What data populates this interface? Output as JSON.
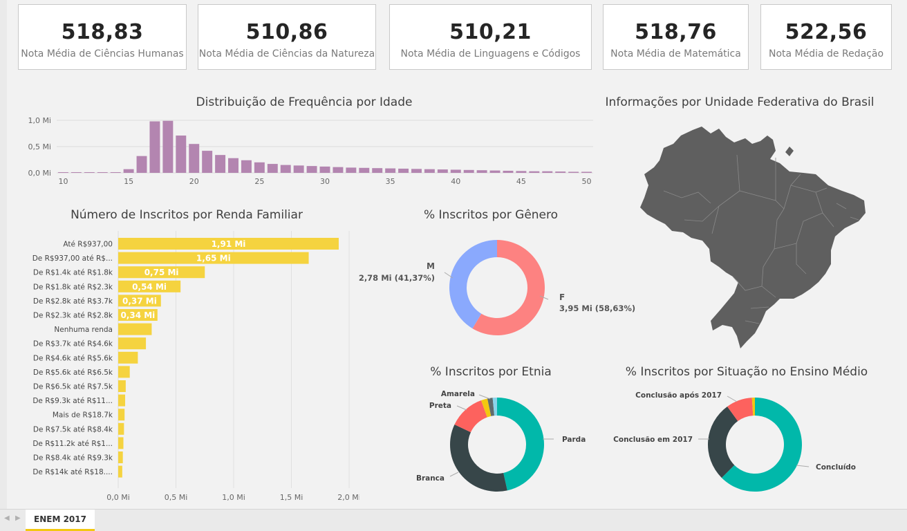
{
  "kpis": [
    {
      "value": "518,83",
      "label": "Nota Média de Ciências Humanas"
    },
    {
      "value": "510,86",
      "label": "Nota Média de Ciências da Natureza"
    },
    {
      "value": "510,21",
      "label": "Nota Média de Linguagens e Códigos"
    },
    {
      "value": "518,76",
      "label": "Nota Média de Matemática"
    },
    {
      "value": "522,56",
      "label": "Nota Média de Redação"
    }
  ],
  "titles": {
    "age": "Distribuição de Frequência por Idade",
    "map": "Informações por Unidade Federativa do Brasil",
    "income": "Número de Inscritos por Renda Familiar",
    "gender": "% Inscritos por Gênero",
    "ethnicity": "% Inscritos por Etnia",
    "school": "% Inscritos por Situação no Ensino Médio"
  },
  "colors": {
    "age_bar": "#b385b0",
    "income_bar": "#f5d33f",
    "map_fill": "#5f5f5f",
    "tab_accent": "#f2c811"
  },
  "chart_data": [
    {
      "type": "bar",
      "title": "Distribuição de Frequência por Idade",
      "x": [
        10,
        11,
        12,
        13,
        14,
        15,
        16,
        17,
        18,
        19,
        20,
        21,
        22,
        23,
        24,
        25,
        26,
        27,
        28,
        29,
        30,
        31,
        32,
        33,
        34,
        35,
        36,
        37,
        38,
        39,
        40,
        41,
        42,
        43,
        44,
        45,
        46,
        47,
        48,
        49,
        50
      ],
      "values": [
        0.003,
        0.003,
        0.003,
        0.004,
        0.006,
        0.07,
        0.32,
        0.98,
        0.99,
        0.71,
        0.55,
        0.42,
        0.34,
        0.28,
        0.24,
        0.2,
        0.17,
        0.15,
        0.14,
        0.13,
        0.12,
        0.11,
        0.1,
        0.095,
        0.09,
        0.085,
        0.08,
        0.075,
        0.07,
        0.065,
        0.06,
        0.055,
        0.05,
        0.045,
        0.04,
        0.035,
        0.03,
        0.03,
        0.025,
        0.02,
        0.02
      ],
      "y_ticks": [
        "0,0 Mi",
        "0,5 Mi",
        "1,0 Mi"
      ],
      "x_ticks": [
        "10",
        "15",
        "20",
        "25",
        "30",
        "35",
        "40",
        "45",
        "50"
      ],
      "ylim": [
        0,
        1.0
      ],
      "unit": "Mi"
    },
    {
      "type": "bar",
      "orientation": "horizontal",
      "title": "Número de Inscritos por Renda Familiar",
      "categories": [
        "Até R$937,00",
        "De R$937,00 até R$...",
        "De R$1.4k até R$1.8k",
        "De R$1.8k até R$2.3k",
        "De R$2.8k até R$3.7k",
        "De R$2.3k até R$2.8k",
        "Nenhuma renda",
        "De R$3.7k até R$4.6k",
        "De R$4.6k até R$5.6k",
        "De R$5.6k até R$6.5k",
        "De R$6.5k até R$7.5k",
        "De R$9.3k até R$11...",
        "Mais de R$18.7k",
        "De R$7.5k até R$8.4k",
        "De R$11.2k até R$1...",
        "De R$8.4k até R$9.3k",
        "De R$14k até R$18...."
      ],
      "values": [
        1.91,
        1.65,
        0.75,
        0.54,
        0.37,
        0.34,
        0.29,
        0.24,
        0.17,
        0.1,
        0.065,
        0.06,
        0.055,
        0.05,
        0.045,
        0.04,
        0.035
      ],
      "data_labels": [
        "1,91 Mi",
        "1,65 Mi",
        "0,75 Mi",
        "0,54 Mi",
        "0,37 Mi",
        "0,34 Mi",
        "",
        "",
        "",
        "",
        "",
        "",
        "",
        "",
        "",
        "",
        ""
      ],
      "x_ticks": [
        "0,0 Mi",
        "0,5 Mi",
        "1,0 Mi",
        "1,5 Mi",
        "2,0 Mi"
      ],
      "xlim": [
        0,
        2.0
      ],
      "unit": "Mi"
    },
    {
      "type": "pie",
      "title": "% Inscritos por Gênero",
      "start_at": "top",
      "slices": [
        {
          "label": "F",
          "value": 58.63,
          "color": "#fd8281",
          "detail": "3,95 Mi (58,63%)"
        },
        {
          "label": "M",
          "value": 41.37,
          "color": "#8aa9fd",
          "detail": "2,78 Mi (41,37%)"
        }
      ]
    },
    {
      "type": "pie",
      "title": "% Inscritos por Etnia",
      "start_at": "top",
      "slices": [
        {
          "label": "Parda",
          "value": 46.5,
          "color": "#01b8aa"
        },
        {
          "label": "Branca",
          "value": 35.5,
          "color": "#374649"
        },
        {
          "label": "Preta",
          "value": 12.5,
          "color": "#fd625e"
        },
        {
          "label": "Amarela",
          "value": 2.2,
          "color": "#f2c80f"
        },
        {
          "label": "",
          "value": 1.8,
          "color": "#5f6b6d"
        },
        {
          "label": "",
          "value": 1.5,
          "color": "#8ad4eb"
        }
      ]
    },
    {
      "type": "pie",
      "title": "% Inscritos por Situação no Ensino Médio",
      "start_at": "top",
      "slices": [
        {
          "label": "Concluído",
          "value": 62.5,
          "color": "#01b8aa"
        },
        {
          "label": "Conclusão em 2017",
          "value": 27.5,
          "color": "#374649"
        },
        {
          "label": "Conclusão após 2017",
          "value": 9.0,
          "color": "#fd625e"
        },
        {
          "label": "",
          "value": 1.0,
          "color": "#f2c80f"
        }
      ]
    }
  ],
  "tabs": {
    "active": "ENEM 2017",
    "prev_icon": "chevron-left-icon",
    "next_icon": "chevron-right-icon"
  }
}
